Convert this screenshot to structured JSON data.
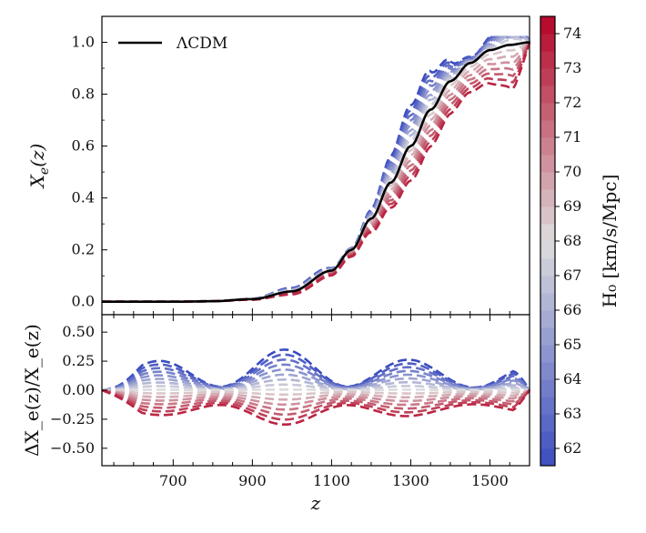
{
  "chart_data": {
    "type": "line",
    "title": "",
    "x_range": [
      520,
      1600
    ],
    "x_ticks": [
      "700",
      "900",
      "1100",
      "1300",
      "1500"
    ],
    "x_tick_values": [
      700,
      900,
      1100,
      1300,
      1500
    ],
    "xlabel": "z",
    "top_panel": {
      "ylabel_main": "X",
      "ylabel_sub": "e",
      "ylabel_tail": "(z)",
      "ylim": [
        -0.05,
        1.1
      ],
      "y_ticks": [
        "0.0",
        "0.2",
        "0.4",
        "0.6",
        "0.8",
        "1.0"
      ],
      "y_tick_values": [
        0.0,
        0.2,
        0.4,
        0.6,
        0.8,
        1.0
      ],
      "legend_label": "ΛCDM",
      "reference_series": {
        "name": "ΛCDM",
        "x": [
          520,
          700,
          800,
          900,
          1000,
          1100,
          1150,
          1200,
          1250,
          1300,
          1350,
          1400,
          1450,
          1500,
          1550,
          1600
        ],
        "y": [
          0.0,
          0.0,
          0.002,
          0.01,
          0.04,
          0.12,
          0.2,
          0.32,
          0.46,
          0.6,
          0.74,
          0.85,
          0.92,
          0.97,
          0.99,
          1.0
        ]
      }
    },
    "bottom_panel": {
      "ylabel": "ΔX_e(z)/X_e(z)",
      "ylim": [
        -0.65,
        0.65
      ],
      "y_ticks": [
        "0.50",
        "0.25",
        "0.00",
        "−0.25",
        "−0.50"
      ],
      "y_tick_values": [
        0.5,
        0.25,
        0.0,
        -0.25,
        -0.5
      ]
    },
    "series_H0": [
      61.5,
      62.3,
      63.1,
      63.9,
      64.7,
      65.5,
      66.3,
      67.1,
      67.9,
      68.7,
      69.5,
      70.3,
      71.1,
      71.9,
      72.7,
      73.5
    ],
    "colorbar": {
      "label": "H₀ [km/s/Mpc]",
      "range": [
        61.5,
        74.5
      ],
      "ticks": [
        "62",
        "63",
        "64",
        "65",
        "66",
        "67",
        "68",
        "69",
        "70",
        "71",
        "72",
        "73",
        "74"
      ],
      "tick_values": [
        62,
        63,
        64,
        65,
        66,
        67,
        68,
        69,
        70,
        71,
        72,
        73,
        74
      ],
      "low_color": "#3b4cc0",
      "mid_color": "#dddddd",
      "high_color": "#b40426"
    }
  }
}
